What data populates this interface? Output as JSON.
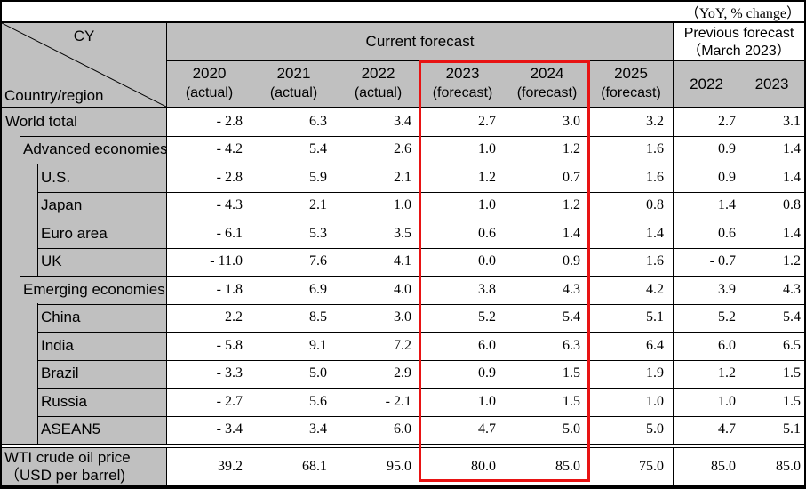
{
  "note": "（YoY, % change）",
  "header": {
    "corner_top": "CY",
    "corner_bottom": "Country/region",
    "current_forecast": "Current forecast",
    "previous_forecast_line1": "Previous forecast",
    "previous_forecast_line2": "（March 2023）",
    "current_columns": [
      {
        "year": "2020",
        "status": "(actual)"
      },
      {
        "year": "2021",
        "status": "(actual)"
      },
      {
        "year": "2022",
        "status": "(actual)"
      },
      {
        "year": "2023",
        "status": "(forecast)"
      },
      {
        "year": "2024",
        "status": "(forecast)"
      },
      {
        "year": "2025",
        "status": "(forecast)"
      }
    ],
    "previous_columns": [
      "2022",
      "2023"
    ]
  },
  "rows": [
    {
      "label": "World total",
      "indent": 0,
      "values": [
        "- 2.8",
        "6.3",
        "3.4",
        "2.7",
        "3.0",
        "3.2",
        "2.7",
        "3.1"
      ]
    },
    {
      "label": "Advanced economies",
      "indent": 1,
      "values": [
        "- 4.2",
        "5.4",
        "2.6",
        "1.0",
        "1.2",
        "1.6",
        "0.9",
        "1.4"
      ]
    },
    {
      "label": "U.S.",
      "indent": 2,
      "values": [
        "- 2.8",
        "5.9",
        "2.1",
        "1.2",
        "0.7",
        "1.6",
        "0.9",
        "1.4"
      ]
    },
    {
      "label": "Japan",
      "indent": 2,
      "values": [
        "- 4.3",
        "2.1",
        "1.0",
        "1.0",
        "1.2",
        "0.8",
        "1.4",
        "0.8"
      ]
    },
    {
      "label": "Euro area",
      "indent": 2,
      "values": [
        "- 6.1",
        "5.3",
        "3.5",
        "0.6",
        "1.4",
        "1.4",
        "0.6",
        "1.4"
      ]
    },
    {
      "label": "UK",
      "indent": 2,
      "values": [
        "- 11.0",
        "7.6",
        "4.1",
        "0.0",
        "0.9",
        "1.6",
        "- 0.7",
        "1.2"
      ]
    },
    {
      "label": "Emerging economies",
      "indent": 1,
      "values": [
        "- 1.8",
        "6.9",
        "4.0",
        "3.8",
        "4.3",
        "4.2",
        "3.9",
        "4.3"
      ]
    },
    {
      "label": "China",
      "indent": 2,
      "values": [
        "2.2",
        "8.5",
        "3.0",
        "5.2",
        "5.4",
        "5.1",
        "5.2",
        "5.4"
      ]
    },
    {
      "label": "India",
      "indent": 2,
      "values": [
        "- 5.8",
        "9.1",
        "7.2",
        "6.0",
        "6.3",
        "6.4",
        "6.0",
        "6.5"
      ]
    },
    {
      "label": "Brazil",
      "indent": 2,
      "values": [
        "- 3.3",
        "5.0",
        "2.9",
        "0.9",
        "1.5",
        "1.9",
        "1.2",
        "1.5"
      ]
    },
    {
      "label": "Russia",
      "indent": 2,
      "values": [
        "- 2.7",
        "5.6",
        "- 2.1",
        "1.0",
        "1.5",
        "1.0",
        "1.0",
        "1.5"
      ]
    },
    {
      "label": "ASEAN5",
      "indent": 2,
      "values": [
        "- 3.4",
        "3.4",
        "6.0",
        "4.7",
        "5.0",
        "5.0",
        "4.7",
        "5.1"
      ]
    }
  ],
  "footer_row": {
    "label_line1": "WTI crude oil price",
    "label_line2": "（USD per barrel)",
    "values": [
      "39.2",
      "68.1",
      "95.0",
      "80.0",
      "85.0",
      "75.0",
      "85.0",
      "85.0"
    ]
  },
  "highlight": {
    "columns": [
      "2023",
      "2024"
    ],
    "color": "#e81313"
  },
  "colors": {
    "header_bg": "#c0c0c0",
    "border": "#000000",
    "data_bg": "#ffffff"
  }
}
